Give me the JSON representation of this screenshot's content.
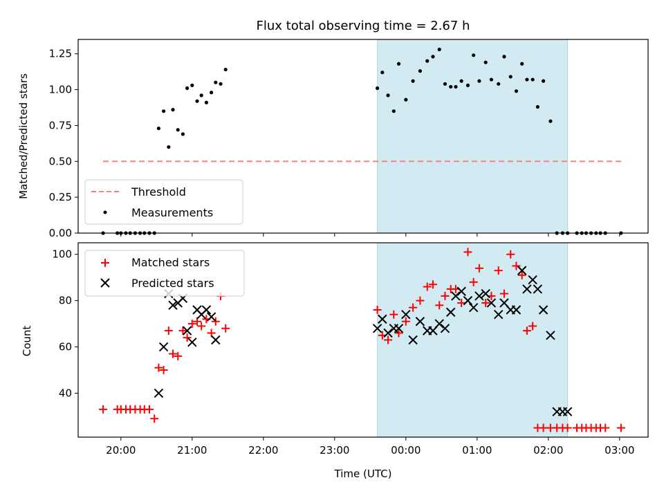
{
  "chart_data": [
    {
      "type": "scatter",
      "title": "Flux total observing time = 2.67 h",
      "xlabel": "",
      "ylabel": "Matched/Predicted stars",
      "x_unit": "hours since 20:00 UTC",
      "xlim": [
        -0.6,
        7.4
      ],
      "ylim": [
        0,
        1.35
      ],
      "yticks": [
        0.0,
        0.25,
        0.5,
        0.75,
        1.0,
        1.25
      ],
      "yticklabels": [
        "0.00",
        "0.25",
        "0.50",
        "0.75",
        "1.00",
        "1.25"
      ],
      "shaded_x_range": [
        3.6,
        6.27
      ],
      "shade_color": "#add8e6",
      "threshold": {
        "name": "Threshold",
        "y": 0.5,
        "x_range": [
          -0.25,
          7.05
        ],
        "color": "#ff7f7f",
        "style": "dashed"
      },
      "legend": {
        "position": "lower-left",
        "entries": [
          "Threshold",
          "Measurements"
        ]
      },
      "series": [
        {
          "name": "Measurements",
          "marker": "dot",
          "color": "#000000",
          "x": [
            -0.25,
            -0.05,
            0.0,
            0.07,
            0.13,
            0.2,
            0.27,
            0.33,
            0.4,
            0.47,
            0.53,
            0.6,
            0.67,
            0.73,
            0.8,
            0.87,
            0.93,
            1.0,
            1.07,
            1.13,
            1.2,
            1.27,
            1.33,
            1.4,
            1.47,
            3.6,
            3.67,
            3.75,
            3.83,
            3.9,
            4.0,
            4.1,
            4.2,
            4.3,
            4.38,
            4.47,
            4.55,
            4.63,
            4.7,
            4.78,
            4.87,
            4.95,
            5.03,
            5.12,
            5.2,
            5.3,
            5.38,
            5.47,
            5.55,
            5.63,
            5.7,
            5.78,
            5.85,
            5.93,
            6.03,
            6.12,
            6.2,
            6.27,
            6.4,
            6.47,
            6.53,
            6.6,
            6.67,
            6.73,
            6.8,
            7.02
          ],
          "y": [
            0.0,
            0.0,
            0.0,
            0.0,
            0.0,
            0.0,
            0.0,
            0.0,
            0.0,
            0.0,
            0.73,
            0.85,
            0.6,
            0.86,
            0.72,
            0.69,
            1.01,
            1.03,
            0.92,
            0.96,
            0.91,
            0.98,
            1.05,
            1.04,
            1.14,
            1.01,
            1.12,
            0.96,
            0.85,
            1.18,
            0.93,
            1.06,
            1.13,
            1.2,
            1.23,
            1.28,
            1.04,
            1.02,
            1.02,
            1.06,
            1.03,
            1.24,
            1.06,
            1.19,
            1.07,
            1.04,
            1.23,
            1.09,
            0.99,
            1.18,
            1.07,
            1.07,
            0.88,
            1.06,
            0.78,
            0.0,
            0.0,
            0.0,
            0.0,
            0.0,
            0.0,
            0.0,
            0.0,
            0.0,
            0.0,
            0.0
          ]
        }
      ]
    },
    {
      "type": "scatter",
      "title": "",
      "xlabel": "Time (UTC)",
      "ylabel": "Count",
      "x_unit": "hours since 20:00 UTC",
      "xlim": [
        -0.6,
        7.4
      ],
      "ylim": [
        21,
        105
      ],
      "xticks": [
        0,
        1,
        2,
        3,
        4,
        5,
        6,
        7
      ],
      "xticklabels": [
        "20:00",
        "21:00",
        "22:00",
        "23:00",
        "00:00",
        "01:00",
        "02:00",
        "03:00"
      ],
      "yticks": [
        40,
        60,
        80,
        100
      ],
      "yticklabels": [
        "40",
        "60",
        "80",
        "100"
      ],
      "shaded_x_range": [
        3.6,
        6.27
      ],
      "shade_color": "#add8e6",
      "legend": {
        "position": "upper-left",
        "entries": [
          "Matched stars",
          "Predicted stars"
        ]
      },
      "series": [
        {
          "name": "Matched stars",
          "marker": "plus",
          "color": "#ff0000",
          "x": [
            -0.25,
            -0.05,
            0.0,
            0.07,
            0.13,
            0.2,
            0.27,
            0.33,
            0.4,
            0.47,
            0.53,
            0.6,
            0.67,
            0.73,
            0.8,
            0.87,
            0.93,
            1.0,
            1.07,
            1.13,
            1.2,
            1.27,
            1.33,
            1.4,
            1.47,
            3.6,
            3.67,
            3.75,
            3.83,
            3.9,
            4.0,
            4.1,
            4.2,
            4.3,
            4.38,
            4.47,
            4.55,
            4.63,
            4.7,
            4.78,
            4.87,
            4.95,
            5.03,
            5.12,
            5.2,
            5.3,
            5.38,
            5.47,
            5.55,
            5.63,
            5.7,
            5.78,
            5.85,
            5.93,
            6.03,
            6.12,
            6.2,
            6.27,
            6.4,
            6.47,
            6.53,
            6.6,
            6.67,
            6.73,
            6.8,
            7.02
          ],
          "y": [
            33,
            33,
            33,
            33,
            33,
            33,
            33,
            33,
            33,
            29,
            51,
            50,
            67,
            57,
            56,
            67,
            64,
            70,
            71,
            69,
            72,
            66,
            71,
            82,
            68,
            76,
            65,
            63,
            74,
            66,
            71,
            77,
            80,
            86,
            87,
            78,
            82,
            85,
            85,
            79,
            101,
            88,
            94,
            79,
            82,
            93,
            83,
            100,
            95,
            91,
            67,
            69,
            25,
            25,
            25,
            25,
            25,
            25,
            25,
            25,
            25,
            25,
            25,
            25,
            25,
            25
          ]
        },
        {
          "name": "Predicted stars",
          "marker": "x",
          "color": "#000000",
          "x": [
            0.53,
            0.6,
            0.67,
            0.73,
            0.8,
            0.87,
            0.93,
            1.0,
            1.07,
            1.13,
            1.2,
            1.27,
            1.33,
            3.6,
            3.67,
            3.75,
            3.83,
            3.9,
            4.0,
            4.1,
            4.2,
            4.3,
            4.38,
            4.47,
            4.55,
            4.63,
            4.7,
            4.78,
            4.87,
            4.95,
            5.03,
            5.12,
            5.2,
            5.3,
            5.38,
            5.47,
            5.55,
            5.63,
            5.7,
            5.78,
            5.85,
            5.93,
            6.03,
            6.12,
            6.2,
            6.27
          ],
          "y": [
            40,
            60,
            83,
            78,
            79,
            81,
            67,
            62,
            76,
            74,
            76,
            73,
            63,
            68,
            72,
            66,
            68,
            68,
            74,
            63,
            71,
            67,
            67,
            70,
            68,
            75,
            82,
            84,
            80,
            77,
            82,
            83,
            79,
            74,
            79,
            76,
            76,
            93,
            85,
            89,
            85,
            76,
            65,
            32,
            32,
            32
          ]
        }
      ]
    }
  ]
}
